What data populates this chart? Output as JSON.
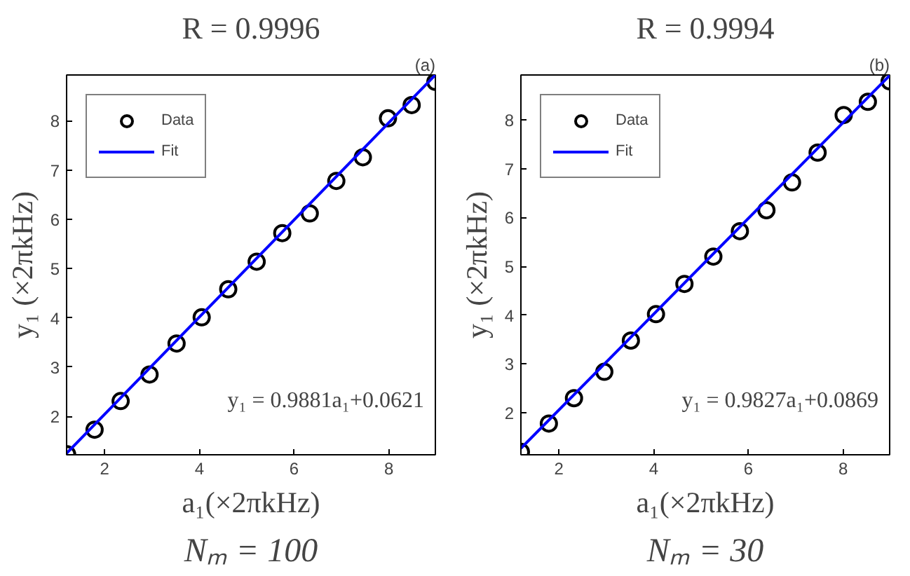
{
  "chart_data": [
    {
      "type": "scatter",
      "title": "R = 0.9996",
      "xlabel": "a₁(×2πkHz)",
      "ylabel": "y₁ (×2πkHz)",
      "annotations": [
        "(a)",
        "y₁ = 0.9881a₁+0.0621",
        "Nₘ = 100"
      ],
      "xlim": [
        1.2,
        8.98
      ],
      "ylim": [
        1.22,
        8.93
      ],
      "xticks": [
        2,
        4,
        6,
        8
      ],
      "yticks": [
        2,
        3,
        4,
        5,
        6,
        7,
        8
      ],
      "legend": "top left",
      "grid": false,
      "series": [
        {
          "name": "Data",
          "type": "scatter",
          "marker": "circle",
          "color": "#000000",
          "x": [
            1.21,
            1.79,
            2.34,
            2.95,
            3.52,
            4.05,
            4.61,
            5.21,
            5.75,
            6.33,
            6.89,
            7.45,
            7.98,
            8.48,
            8.98
          ],
          "values": [
            1.23,
            1.73,
            2.31,
            2.85,
            3.48,
            4.01,
            4.58,
            5.14,
            5.72,
            6.12,
            6.78,
            7.26,
            8.05,
            8.32,
            8.79
          ]
        },
        {
          "name": "Fit",
          "type": "line",
          "line_style": "solid",
          "color": "#0000ff",
          "x": [
            1.2,
            8.98
          ],
          "values": [
            1.25,
            8.93
          ]
        }
      ]
    },
    {
      "type": "scatter",
      "title": "R = 0.9994",
      "xlabel": "a₁(×2πkHz)",
      "ylabel": "y₁ (×2πkHz)",
      "annotations": [
        "(b)",
        "y₁ = 0.9827a₁+0.0869",
        "Nₘ = 30"
      ],
      "xlim": [
        1.2,
        8.98
      ],
      "ylim": [
        1.14,
        8.92
      ],
      "xticks": [
        2,
        4,
        6,
        8
      ],
      "yticks": [
        2,
        3,
        4,
        5,
        6,
        7,
        8
      ],
      "legend": "top left",
      "grid": false,
      "series": [
        {
          "name": "Data",
          "type": "scatter",
          "marker": "circle",
          "color": "#000000",
          "x": [
            1.2,
            1.79,
            2.32,
            2.96,
            3.52,
            4.05,
            4.65,
            5.26,
            5.82,
            6.38,
            6.92,
            7.46,
            8.01,
            8.52,
            8.98
          ],
          "values": [
            1.2,
            1.78,
            2.3,
            2.84,
            3.48,
            4.02,
            4.64,
            5.2,
            5.72,
            6.15,
            6.72,
            7.33,
            8.1,
            8.37,
            8.79
          ]
        },
        {
          "name": "Fit",
          "type": "line",
          "line_style": "solid",
          "color": "#0000ff",
          "x": [
            1.2,
            8.98
          ],
          "values": [
            1.27,
            8.91
          ]
        }
      ]
    }
  ]
}
